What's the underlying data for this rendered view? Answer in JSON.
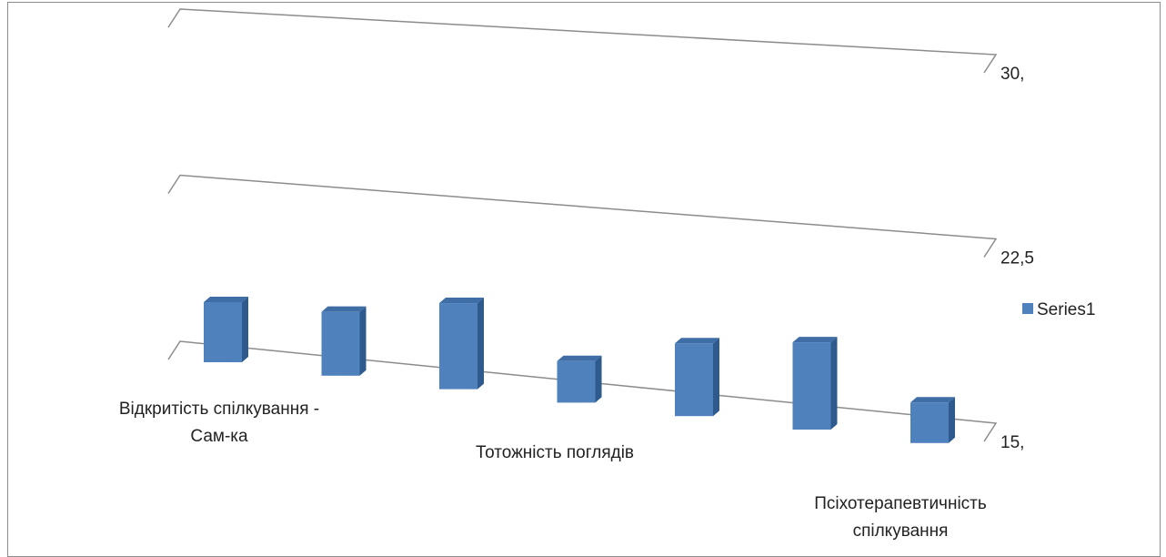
{
  "chart_data": {
    "type": "bar",
    "series": [
      {
        "name": "Series1",
        "values": [
          19.4,
          19.6,
          21.1,
          17.9,
          20.0,
          20.9,
          17.7
        ],
        "color": "#4f81bd"
      }
    ],
    "categories": [
      "Відкритість спілкування - Сам-ка",
      "",
      "Тотожність поглядів",
      "",
      "",
      "",
      "Псіхотерапевтичність спілкування"
    ],
    "category_label_lines": [
      [
        "Відкритість спілкування -",
        "Сам-ка"
      ],
      [
        "Тотожність поглядів"
      ],
      [
        "Псіхотерапевтичність",
        "спілкування"
      ]
    ],
    "ylim": [
      15,
      30
    ],
    "yticks": [
      15,
      22.5,
      30
    ],
    "ytick_labels": [
      "15,",
      "22,5",
      "30,"
    ],
    "title": "",
    "xlabel": "",
    "ylabel": "",
    "grid": true,
    "legend_position": "right",
    "style": "3d-column"
  }
}
